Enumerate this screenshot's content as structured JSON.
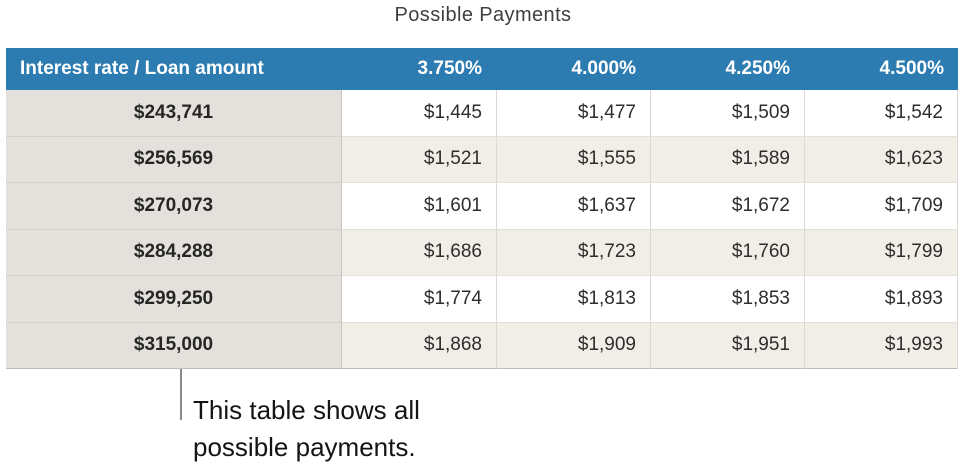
{
  "title": "Possible Payments",
  "table": {
    "header": {
      "label": "Interest rate / Loan amount",
      "rates": [
        "3.750%",
        "4.000%",
        "4.250%",
        "4.500%"
      ]
    },
    "rows": [
      {
        "loan": "$243,741",
        "payments": [
          "$1,445",
          "$1,477",
          "$1,509",
          "$1,542"
        ]
      },
      {
        "loan": "$256,569",
        "payments": [
          "$1,521",
          "$1,555",
          "$1,589",
          "$1,623"
        ]
      },
      {
        "loan": "$270,073",
        "payments": [
          "$1,601",
          "$1,637",
          "$1,672",
          "$1,709"
        ]
      },
      {
        "loan": "$284,288",
        "payments": [
          "$1,686",
          "$1,723",
          "$1,760",
          "$1,799"
        ]
      },
      {
        "loan": "$299,250",
        "payments": [
          "$1,774",
          "$1,813",
          "$1,853",
          "$1,893"
        ]
      },
      {
        "loan": "$315,000",
        "payments": [
          "$1,868",
          "$1,909",
          "$1,951",
          "$1,993"
        ]
      }
    ]
  },
  "callout": {
    "text": "This table shows all possible payments."
  },
  "colors": {
    "header_bg": "#2d7cb1",
    "header_text": "#ffffff",
    "label_col_bg": "#e4e1dd",
    "row_bg": "#ffffff",
    "row_alt_bg": "#f1eee7",
    "cell_text": "#2d2d2d",
    "connector": "#8a8a8a"
  }
}
